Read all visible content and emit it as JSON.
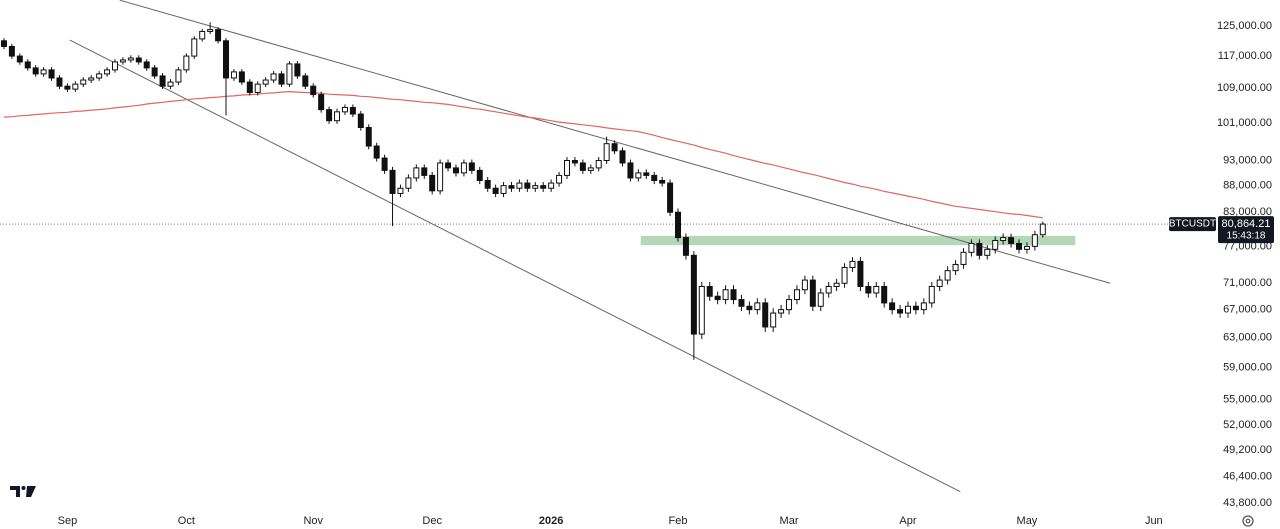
{
  "chart_data": {
    "type": "candlestick",
    "symbol": "BTCUSDT",
    "last_price_label": "80,864.21",
    "countdown": "15:43:18",
    "log_scale": true,
    "up_color": "#ffffff",
    "down_color": "#111111",
    "outline_color": "#111111",
    "ylim": [
      43130,
      132350
    ],
    "yticks": [
      {
        "value": 125000,
        "label": "125,000.00"
      },
      {
        "value": 117000,
        "label": "117,000.00"
      },
      {
        "value": 109000,
        "label": "109,000.00"
      },
      {
        "value": 101000,
        "label": "101,000.00"
      },
      {
        "value": 93000,
        "label": "93,000.00"
      },
      {
        "value": 88000,
        "label": "88,000.00"
      },
      {
        "value": 83000,
        "label": "83,000.00"
      },
      {
        "value": 77000,
        "label": "77,000.00"
      },
      {
        "value": 71000,
        "label": "71,000.00"
      },
      {
        "value": 67000,
        "label": "67,000.00"
      },
      {
        "value": 63000,
        "label": "63,000.00"
      },
      {
        "value": 59000,
        "label": "59,000.00"
      },
      {
        "value": 55000,
        "label": "55,000.00"
      },
      {
        "value": 52000,
        "label": "52,000.00"
      },
      {
        "value": 49200,
        "label": "49,200.00"
      },
      {
        "value": 46400,
        "label": "46,400.00"
      },
      {
        "value": 43800,
        "label": "43,800.00"
      }
    ],
    "categories": [
      null,
      null,
      null,
      null,
      null,
      null,
      null,
      null,
      "Sep",
      null,
      null,
      null,
      null,
      null,
      null,
      null,
      null,
      null,
      null,
      null,
      null,
      null,
      null,
      "Oct",
      null,
      null,
      null,
      null,
      null,
      null,
      null,
      null,
      null,
      null,
      null,
      null,
      null,
      null,
      null,
      "Nov",
      null,
      null,
      null,
      null,
      null,
      null,
      null,
      null,
      null,
      null,
      null,
      null,
      null,
      null,
      "Dec",
      null,
      null,
      null,
      null,
      null,
      null,
      null,
      null,
      null,
      null,
      null,
      null,
      null,
      null,
      "2026",
      null,
      null,
      null,
      null,
      null,
      null,
      null,
      null,
      null,
      null,
      null,
      null,
      null,
      null,
      null,
      "Feb",
      null,
      null,
      null,
      null,
      null,
      null,
      null,
      null,
      null,
      null,
      null,
      null,
      null,
      "Mar",
      null,
      null,
      null,
      null,
      null,
      null,
      null,
      null,
      null,
      null,
      null,
      null,
      null,
      null,
      "Apr",
      null,
      null,
      null,
      null,
      null,
      null,
      null,
      null,
      null,
      null,
      null,
      null,
      null,
      null,
      "May",
      null,
      null,
      null,
      null,
      null,
      null,
      null,
      null,
      null,
      null,
      null,
      null,
      null,
      null,
      null,
      "Jun",
      null,
      null,
      null,
      null
    ],
    "open": [
      121000,
      119500,
      117000,
      115500,
      114000,
      112500,
      113500,
      111500,
      109500,
      108800,
      110000,
      111000,
      111500,
      112500,
      113500,
      115500,
      116000,
      116500,
      115500,
      114000,
      112000,
      109500,
      110500,
      113500,
      117000,
      121500,
      123500,
      124000,
      121000,
      111500,
      113000,
      110500,
      108000,
      110000,
      111000,
      112500,
      110000,
      115000,
      112000,
      109500,
      107500,
      104000,
      101500,
      103500,
      104500,
      103000,
      100000,
      96000,
      93500,
      91000,
      86500,
      87500,
      89500,
      91500,
      90000,
      87000,
      92500,
      91500,
      90500,
      92500,
      91000,
      89000,
      87500,
      86500,
      88000,
      87500,
      88500,
      87500,
      88000,
      87500,
      88500,
      90000,
      93000,
      92500,
      91000,
      91500,
      93000,
      96500,
      95000,
      92500,
      89500,
      90500,
      90000,
      89000,
      88500,
      83000,
      78500,
      75500,
      63500,
      70500,
      69000,
      68500,
      70000,
      68500,
      67500,
      67000,
      68000,
      64500,
      66500,
      67000,
      68500,
      70000,
      71500,
      67500,
      69500,
      70500,
      71000,
      73500,
      74500,
      70500,
      69500,
      70500,
      68000,
      67000,
      66500,
      67500,
      67000,
      68000,
      70500,
      71500,
      73000,
      74000,
      76000,
      77500,
      75500,
      76500,
      78000,
      78500,
      77500,
      76500,
      77000,
      79000,
      null,
      null,
      null,
      null,
      null,
      null,
      null,
      null,
      null,
      null,
      null,
      null,
      null,
      null,
      null,
      null,
      null,
      null
    ],
    "high": [
      121700,
      120200,
      117700,
      116200,
      114700,
      114200,
      114200,
      112200,
      110200,
      110700,
      111700,
      112200,
      113200,
      114200,
      116200,
      116700,
      117200,
      117200,
      116200,
      114700,
      112700,
      111200,
      114200,
      117700,
      122200,
      124200,
      126000,
      124700,
      121700,
      113700,
      113700,
      111200,
      110700,
      111700,
      113200,
      113200,
      115700,
      115700,
      112700,
      110200,
      108200,
      104700,
      104200,
      105200,
      105200,
      103700,
      100700,
      96700,
      94200,
      91700,
      88200,
      90200,
      92200,
      92200,
      90700,
      93200,
      93200,
      92200,
      93200,
      93200,
      91700,
      89700,
      88200,
      88700,
      88700,
      89200,
      89200,
      88700,
      88700,
      89200,
      90700,
      93700,
      93700,
      93200,
      92200,
      93700,
      98000,
      97200,
      95700,
      93200,
      91200,
      91200,
      90700,
      89700,
      89200,
      83700,
      79200,
      76200,
      71200,
      71200,
      69700,
      70700,
      70700,
      69200,
      68200,
      68700,
      68700,
      67200,
      67700,
      69200,
      70700,
      72200,
      72200,
      70200,
      71200,
      71700,
      74200,
      75200,
      75200,
      71200,
      71200,
      71200,
      68700,
      67700,
      68200,
      68200,
      68700,
      71200,
      72200,
      73700,
      74700,
      76700,
      78200,
      78200,
      77200,
      78700,
      79200,
      79200,
      78200,
      77700,
      79700,
      81300,
      null,
      null,
      null,
      null,
      null,
      null,
      null,
      null,
      null,
      null,
      null,
      null,
      null,
      null,
      null,
      null,
      null,
      null
    ],
    "low": [
      118800,
      116300,
      114800,
      113300,
      111800,
      111800,
      110800,
      108800,
      108100,
      108100,
      109300,
      110300,
      110800,
      111800,
      112800,
      114800,
      115300,
      114800,
      113300,
      111300,
      108800,
      108800,
      109800,
      112800,
      116300,
      120800,
      122800,
      120300,
      102700,
      110800,
      109800,
      107300,
      107300,
      109300,
      110300,
      109300,
      109300,
      111300,
      108800,
      106800,
      103300,
      100800,
      100800,
      102800,
      102300,
      99300,
      95300,
      92800,
      90300,
      80500,
      85800,
      86800,
      88800,
      89300,
      86300,
      86300,
      90800,
      89800,
      89800,
      90300,
      88300,
      86800,
      85800,
      85800,
      86800,
      86800,
      86800,
      86800,
      86800,
      86800,
      87800,
      89300,
      91800,
      90300,
      90300,
      90800,
      92300,
      94300,
      91800,
      88800,
      88800,
      89300,
      88300,
      87800,
      82300,
      77800,
      74800,
      60000,
      62800,
      68300,
      67800,
      67800,
      67800,
      66800,
      66300,
      66300,
      63800,
      63800,
      65800,
      66300,
      67800,
      69300,
      66800,
      66800,
      68800,
      69800,
      70300,
      72800,
      69800,
      68800,
      68800,
      67300,
      66300,
      65800,
      65800,
      66300,
      66300,
      67300,
      69800,
      70800,
      72300,
      73300,
      75300,
      74800,
      74800,
      75800,
      77300,
      76800,
      75800,
      75800,
      76300,
      78500,
      null,
      null,
      null,
      null,
      null,
      null,
      null,
      null,
      null,
      null,
      null,
      null,
      null,
      null,
      null,
      null,
      null,
      null
    ],
    "close": [
      119500,
      117000,
      115500,
      114000,
      112500,
      113500,
      111500,
      109500,
      108800,
      110000,
      111000,
      111500,
      112500,
      113500,
      115500,
      116000,
      116500,
      115500,
      114000,
      112000,
      109500,
      110500,
      113500,
      117000,
      121500,
      123500,
      124000,
      121000,
      111500,
      113000,
      110500,
      108000,
      110000,
      111000,
      112500,
      110000,
      115000,
      112000,
      109500,
      107500,
      104000,
      101500,
      103500,
      104500,
      103000,
      100000,
      96000,
      93500,
      91000,
      86500,
      87500,
      89500,
      91500,
      90000,
      87000,
      92500,
      91500,
      90500,
      92500,
      91000,
      89000,
      87500,
      86500,
      88000,
      87500,
      88500,
      87500,
      88000,
      87500,
      88500,
      90000,
      93000,
      92500,
      91000,
      91500,
      93000,
      96500,
      95000,
      92500,
      89500,
      90500,
      90000,
      89000,
      88500,
      83000,
      78500,
      75500,
      63500,
      70500,
      69000,
      68500,
      70000,
      68500,
      67500,
      67000,
      68000,
      64500,
      66500,
      67000,
      68500,
      70000,
      71500,
      67500,
      69500,
      70500,
      71000,
      73500,
      74500,
      70500,
      69500,
      70500,
      68000,
      67000,
      66500,
      67500,
      67000,
      68000,
      70500,
      71500,
      73000,
      74000,
      76000,
      77500,
      75500,
      76500,
      78000,
      78500,
      77500,
      76500,
      77000,
      79000,
      80864.21,
      null,
      null,
      null,
      null,
      null,
      null,
      null,
      null,
      null,
      null,
      null,
      null,
      null,
      null,
      null,
      null,
      null,
      null
    ],
    "moving_average": {
      "color": "#e06666",
      "values": [
        102300,
        102400,
        102600,
        102700,
        102900,
        103000,
        103200,
        103300,
        103400,
        103600,
        103700,
        103900,
        104000,
        104200,
        104400,
        104600,
        104800,
        105000,
        105300,
        105500,
        105700,
        105900,
        106100,
        106300,
        106500,
        106600,
        106800,
        106900,
        107100,
        107200,
        107400,
        107500,
        107600,
        107800,
        107900,
        108100,
        108200,
        108100,
        108000,
        107900,
        107800,
        107600,
        107500,
        107400,
        107300,
        107100,
        107000,
        106800,
        106600,
        106400,
        106300,
        106100,
        105900,
        105700,
        105600,
        105400,
        105200,
        104900,
        104600,
        104300,
        104100,
        103800,
        103500,
        103200,
        102900,
        102600,
        102300,
        102100,
        101800,
        101500,
        101200,
        101000,
        100800,
        100600,
        100400,
        100200,
        99900,
        99700,
        99500,
        99300,
        99100,
        98700,
        98300,
        97800,
        97400,
        97000,
        96600,
        96200,
        95700,
        95300,
        94900,
        94500,
        94000,
        93600,
        93200,
        92800,
        92400,
        92100,
        91700,
        91300,
        90900,
        90500,
        90200,
        89800,
        89400,
        89000,
        88600,
        88300,
        87900,
        87600,
        87300,
        86900,
        86600,
        86300,
        86000,
        85700,
        85400,
        85000,
        84700,
        84400,
        84100,
        83900,
        83700,
        83500,
        83300,
        83100,
        82900,
        82700,
        82600,
        82400,
        82200,
        82000,
        null,
        null,
        null,
        null,
        null,
        null,
        null,
        null,
        null,
        null,
        null,
        null,
        null,
        null,
        null,
        null,
        null,
        null
      ]
    },
    "trendlines": [
      {
        "from": [
          14.6,
          132300
        ],
        "to": [
          139.5,
          71000
        ]
      },
      {
        "from": [
          8.3,
          121200
        ],
        "to": [
          120.6,
          44900
        ]
      }
    ],
    "zone": {
      "from": 80.3,
      "to": 135.1,
      "low": 77200,
      "high": 78800,
      "color": "#a9cfae"
    }
  }
}
